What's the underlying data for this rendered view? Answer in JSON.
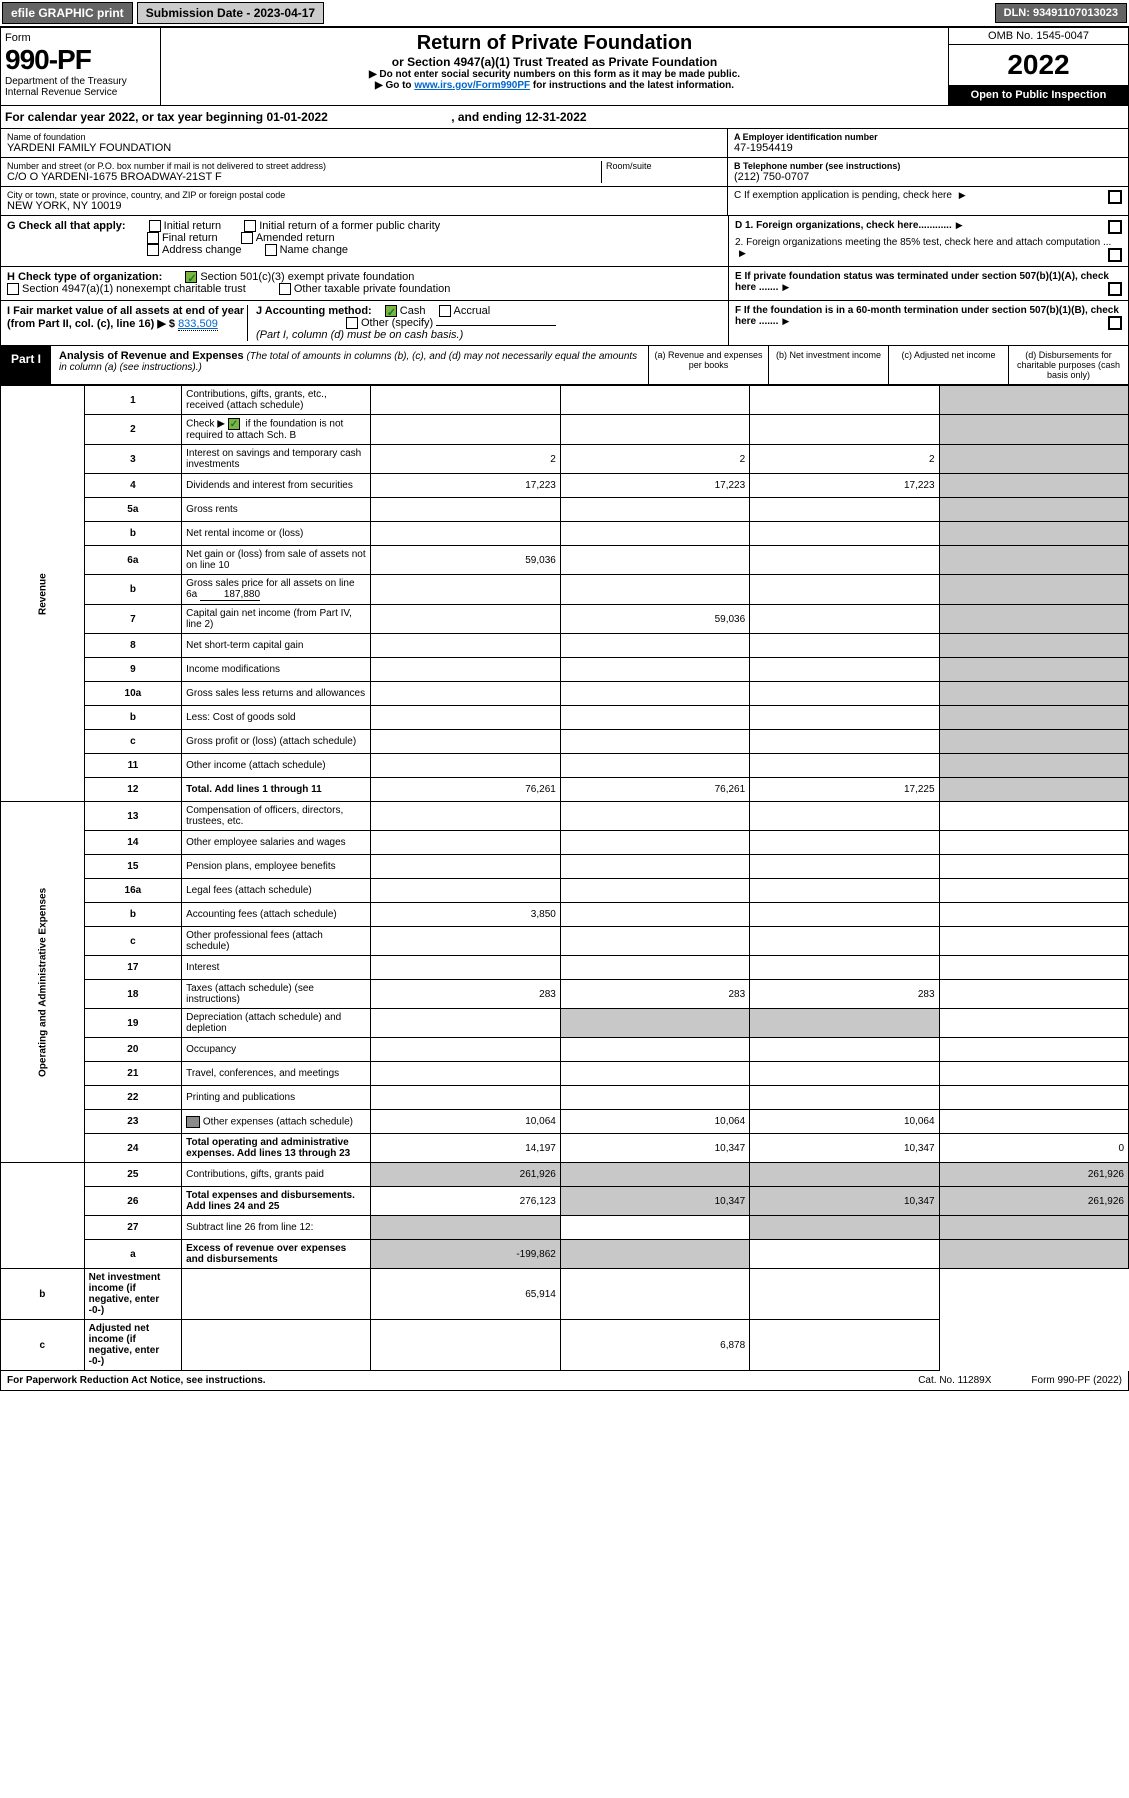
{
  "topbar": {
    "efile": "efile GRAPHIC print",
    "sub_label": "Submission Date - 2023-04-17",
    "dln": "DLN: 93491107013023"
  },
  "hdr": {
    "form": "Form",
    "n990": "990-PF",
    "dept": "Department of the Treasury",
    "irs": "Internal Revenue Service",
    "title": "Return of Private Foundation",
    "subtitle": "or Section 4947(a)(1) Trust Treated as Private Foundation",
    "instr1": "▶ Do not enter social security numbers on this form as it may be made public.",
    "instr2": "▶ Go to ",
    "instr2_link": "www.irs.gov/Form990PF",
    "instr2_tail": " for instructions and the latest information.",
    "omb": "OMB No. 1545-0047",
    "year": "2022",
    "open": "Open to Public Inspection"
  },
  "cal": {
    "pre": "For calendar year 2022, or tax year beginning ",
    "begin": "01-01-2022",
    "mid": ", and ending ",
    "end": "12-31-2022"
  },
  "name": {
    "lbl": "Name of foundation",
    "val": "YARDENI FAMILY FOUNDATION"
  },
  "ein": {
    "lbl": "A Employer identification number",
    "val": "47-1954419"
  },
  "addr": {
    "lbl": "Number and street (or P.O. box number if mail is not delivered to street address)",
    "val": "C/O O YARDENI-1675 BROADWAY-21ST F",
    "room": "Room/suite"
  },
  "tel": {
    "lbl": "B Telephone number (see instructions)",
    "val": "(212) 750-0707"
  },
  "city": {
    "lbl": "City or town, state or province, country, and ZIP or foreign postal code",
    "val": "NEW YORK, NY  10019"
  },
  "c_exempt": "C If exemption application is pending, check here",
  "g": {
    "lbl": "G Check all that apply:",
    "o1": "Initial return",
    "o2": "Initial return of a former public charity",
    "o3": "Final return",
    "o4": "Amended return",
    "o5": "Address change",
    "o6": "Name change"
  },
  "d": {
    "d1": "D 1. Foreign organizations, check here............",
    "d2": "2. Foreign organizations meeting the 85% test, check here and attach computation ..."
  },
  "h": {
    "lbl": "H Check type of organization:",
    "o1": "Section 501(c)(3) exempt private foundation",
    "o2": "Section 4947(a)(1) nonexempt charitable trust",
    "o3": "Other taxable private foundation"
  },
  "e": "E If private foundation status was terminated under section 507(b)(1)(A), check here .......",
  "i": {
    "lbl": "I Fair market value of all assets at end of year (from Part II, col. (c), line 16) ▶ $",
    "val": "833,509"
  },
  "j": {
    "lbl": "J Accounting method:",
    "o1": "Cash",
    "o2": "Accrual",
    "o3": "Other (specify)",
    "note": "(Part I, column (d) must be on cash basis.)"
  },
  "f": "F If the foundation is in a 60-month termination under section 507(b)(1)(B), check here .......",
  "part1": {
    "tab": "Part I",
    "title": "Analysis of Revenue and Expenses",
    "note": "(The total of amounts in columns (b), (c), and (d) may not necessarily equal the amounts in column (a) (see instructions).)",
    "ca": "(a) Revenue and expenses per books",
    "cb": "(b) Net investment income",
    "cc": "(c) Adjusted net income",
    "cd": "(d) Disbursements for charitable purposes (cash basis only)"
  },
  "side": {
    "rev": "Revenue",
    "exp": "Operating and Administrative Expenses"
  },
  "rows": [
    {
      "n": "1",
      "d": "Contributions, gifts, grants, etc., received (attach schedule)"
    },
    {
      "n": "2",
      "d": "Check ▶ ",
      "d2": " if the foundation is not required to attach Sch. B",
      "chk": true
    },
    {
      "n": "3",
      "d": "Interest on savings and temporary cash investments",
      "a": "2",
      "b": "2",
      "c": "2"
    },
    {
      "n": "4",
      "d": "Dividends and interest from securities",
      "a": "17,223",
      "b": "17,223",
      "c": "17,223"
    },
    {
      "n": "5a",
      "d": "Gross rents"
    },
    {
      "n": "b",
      "d": "Net rental income or (loss)"
    },
    {
      "n": "6a",
      "d": "Net gain or (loss) from sale of assets not on line 10",
      "a": "59,036"
    },
    {
      "n": "b",
      "d": "Gross sales price for all assets on line 6a",
      "inline": "187,880"
    },
    {
      "n": "7",
      "d": "Capital gain net income (from Part IV, line 2)",
      "b": "59,036"
    },
    {
      "n": "8",
      "d": "Net short-term capital gain"
    },
    {
      "n": "9",
      "d": "Income modifications"
    },
    {
      "n": "10a",
      "d": "Gross sales less returns and allowances"
    },
    {
      "n": "b",
      "d": "Less: Cost of goods sold"
    },
    {
      "n": "c",
      "d": "Gross profit or (loss) (attach schedule)"
    },
    {
      "n": "11",
      "d": "Other income (attach schedule)"
    },
    {
      "n": "12",
      "d": "Total. Add lines 1 through 11",
      "bold": true,
      "a": "76,261",
      "b": "76,261",
      "c": "17,225"
    },
    {
      "n": "13",
      "d": "Compensation of officers, directors, trustees, etc."
    },
    {
      "n": "14",
      "d": "Other employee salaries and wages"
    },
    {
      "n": "15",
      "d": "Pension plans, employee benefits"
    },
    {
      "n": "16a",
      "d": "Legal fees (attach schedule)"
    },
    {
      "n": "b",
      "d": "Accounting fees (attach schedule)",
      "a": "3,850"
    },
    {
      "n": "c",
      "d": "Other professional fees (attach schedule)"
    },
    {
      "n": "17",
      "d": "Interest"
    },
    {
      "n": "18",
      "d": "Taxes (attach schedule) (see instructions)",
      "a": "283",
      "b": "283",
      "c": "283"
    },
    {
      "n": "19",
      "d": "Depreciation (attach schedule) and depletion"
    },
    {
      "n": "20",
      "d": "Occupancy"
    },
    {
      "n": "21",
      "d": "Travel, conferences, and meetings"
    },
    {
      "n": "22",
      "d": "Printing and publications"
    },
    {
      "n": "23",
      "d": "Other expenses (attach schedule)",
      "icon": true,
      "a": "10,064",
      "b": "10,064",
      "c": "10,064"
    },
    {
      "n": "24",
      "d": "Total operating and administrative expenses. Add lines 13 through 23",
      "bold": true,
      "a": "14,197",
      "b": "10,347",
      "c": "10,347",
      "dv": "0"
    },
    {
      "n": "25",
      "d": "Contributions, gifts, grants paid",
      "a": "261,926",
      "dv": "261,926"
    },
    {
      "n": "26",
      "d": "Total expenses and disbursements. Add lines 24 and 25",
      "bold": true,
      "a": "276,123",
      "b": "10,347",
      "c": "10,347",
      "dv": "261,926"
    },
    {
      "n": "27",
      "d": "Subtract line 26 from line 12:"
    },
    {
      "n": "a",
      "d": "Excess of revenue over expenses and disbursements",
      "bold": true,
      "a": "-199,862"
    },
    {
      "n": "b",
      "d": "Net investment income (if negative, enter -0-)",
      "bold": true,
      "b": "65,914"
    },
    {
      "n": "c",
      "d": "Adjusted net income (if negative, enter -0-)",
      "bold": true,
      "c": "6,878"
    }
  ],
  "ft": {
    "l": "For Paperwork Reduction Act Notice, see instructions.",
    "c": "Cat. No. 11289X",
    "r": "Form 990-PF (2022)"
  }
}
